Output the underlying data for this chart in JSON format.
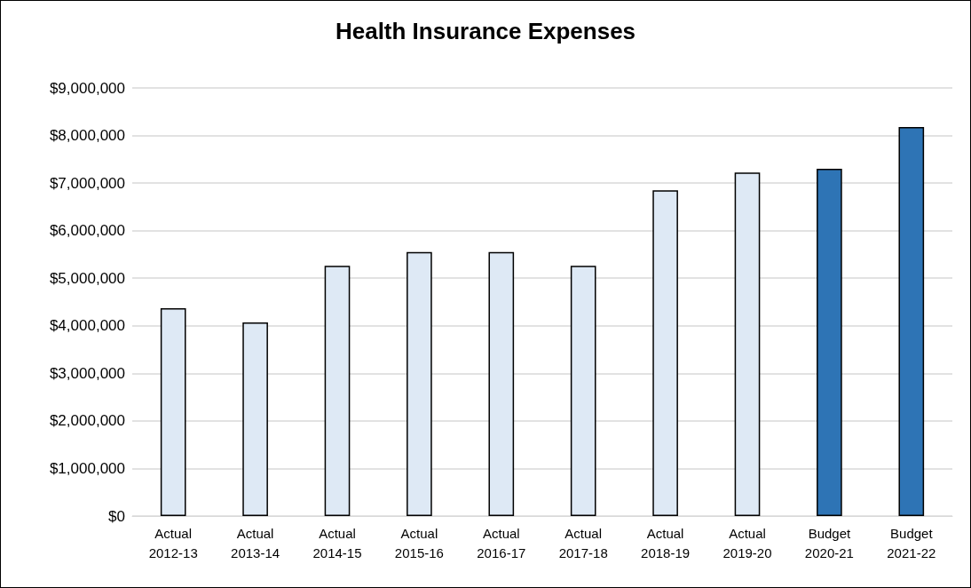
{
  "chart_data": {
    "type": "bar",
    "title": "Health Insurance Expenses",
    "categories": [
      "Actual\n2012-13",
      "Actual\n2013-14",
      "Actual\n2014-15",
      "Actual\n2015-16",
      "Actual\n2016-17",
      "Actual\n2017-18",
      "Actual\n2018-19",
      "Actual\n2019-20",
      "Budget\n2020-21",
      "Budget\n2021-22"
    ],
    "values": [
      4370000,
      4070000,
      5260000,
      5550000,
      5550000,
      5260000,
      6850000,
      7220000,
      7300000,
      8180000
    ],
    "colors": [
      "#dee9f5",
      "#dee9f5",
      "#dee9f5",
      "#dee9f5",
      "#dee9f5",
      "#dee9f5",
      "#dee9f5",
      "#dee9f5",
      "#2e74b5",
      "#2e74b5"
    ],
    "ylim": [
      0,
      9000000
    ],
    "yticks": [
      {
        "value": 0,
        "label": "$0"
      },
      {
        "value": 1000000,
        "label": "$1,000,000"
      },
      {
        "value": 2000000,
        "label": "$2,000,000"
      },
      {
        "value": 3000000,
        "label": "$3,000,000"
      },
      {
        "value": 4000000,
        "label": "$4,000,000"
      },
      {
        "value": 5000000,
        "label": "$5,000,000"
      },
      {
        "value": 6000000,
        "label": "$6,000,000"
      },
      {
        "value": 7000000,
        "label": "$7,000,000"
      },
      {
        "value": 8000000,
        "label": "$8,000,000"
      },
      {
        "value": 9000000,
        "label": "$9,000,000"
      }
    ],
    "grid": "y"
  }
}
